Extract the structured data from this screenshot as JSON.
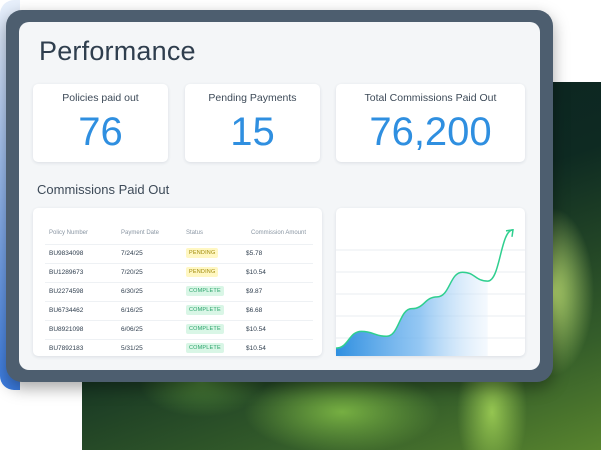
{
  "page": {
    "title": "Performance",
    "stats": [
      {
        "label": "Policies paid out",
        "value": "76"
      },
      {
        "label": "Pending Payments",
        "value": "15"
      },
      {
        "label": "Total Commissions Paid Out",
        "value": "76,200"
      }
    ],
    "section_title": "Commissions Paid Out"
  },
  "table": {
    "headers": [
      "Policy Number",
      "Payment Date",
      "Status",
      "Commission Amount"
    ],
    "rows": [
      {
        "policy": "BU9834098",
        "date": "7/24/25",
        "status": "PENDING",
        "amount": "$5.78"
      },
      {
        "policy": "BU1289673",
        "date": "7/20/25",
        "status": "PENDING",
        "amount": "$10.54"
      },
      {
        "policy": "BU2274598",
        "date": "6/30/25",
        "status": "COMPLETE",
        "amount": "$9.87"
      },
      {
        "policy": "BU6734462",
        "date": "6/16/25",
        "status": "COMPLETE",
        "amount": "$6.68"
      },
      {
        "policy": "BU8921098",
        "date": "6/06/25",
        "status": "COMPLETE",
        "amount": "$10.54"
      },
      {
        "policy": "BU7892183",
        "date": "5/31/25",
        "status": "COMPLETE",
        "amount": "$10.54"
      }
    ]
  },
  "colors": {
    "accent": "#2f8fe0",
    "trend_line": "#2fcf8f",
    "pending_bg": "#fff7c2",
    "complete_bg": "#d9f6e6"
  },
  "chart_data": {
    "type": "area",
    "title": "",
    "xlabel": "",
    "ylabel": "",
    "x": [
      0,
      1,
      2,
      3,
      4,
      5,
      6,
      7
    ],
    "values": [
      8,
      25,
      20,
      48,
      60,
      85,
      76,
      128
    ],
    "ylim": [
      0,
      140
    ],
    "grid": true,
    "arrow_at_end": true
  }
}
